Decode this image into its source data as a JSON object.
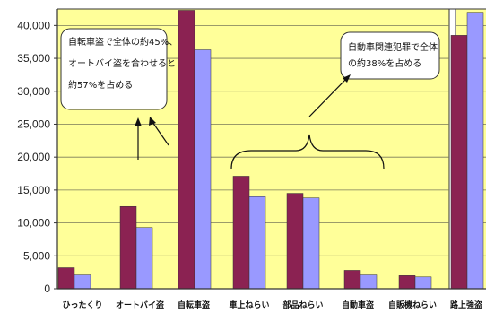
{
  "chart_data": {
    "type": "bar",
    "title": "",
    "xlabel": "",
    "ylabel": "",
    "ylim": [
      0,
      42500
    ],
    "yticks": [
      0,
      5000,
      10000,
      15000,
      20000,
      25000,
      30000,
      35000,
      40000
    ],
    "ytick_labels": [
      "0",
      "5,000",
      "10,000",
      "15,000",
      "20,000",
      "25,000",
      "30,000",
      "35,000",
      "40,000"
    ],
    "grid": true,
    "categories": [
      "ひったくり",
      "オートバイ盗",
      "自転車盗",
      "車上ねらい",
      "部品ねらい",
      "自動車盗",
      "自販機ねらい",
      "路上強盗"
    ],
    "series": [
      {
        "values": [
          3200,
          12500,
          42300,
          17100,
          14500,
          2800,
          2000,
          38500
        ]
      },
      {
        "values": [
          2100,
          9300,
          36300,
          14000,
          13800,
          2100,
          1800,
          42000
        ]
      }
    ],
    "annotations": [
      {
        "lines": [
          "自転車盗で全体の約45%、",
          "オートバイ盗を合わせると",
          "約57%を占める"
        ]
      },
      {
        "lines": [
          "自動車関連犯罪で全体",
          "の約38%を占める"
        ]
      }
    ],
    "colors": {
      "series_1": "#8b2252",
      "series_2": "#9999ff",
      "plot_bg": "#ffff99",
      "gridline": "#7a7a5a",
      "axis": "#333333"
    }
  }
}
